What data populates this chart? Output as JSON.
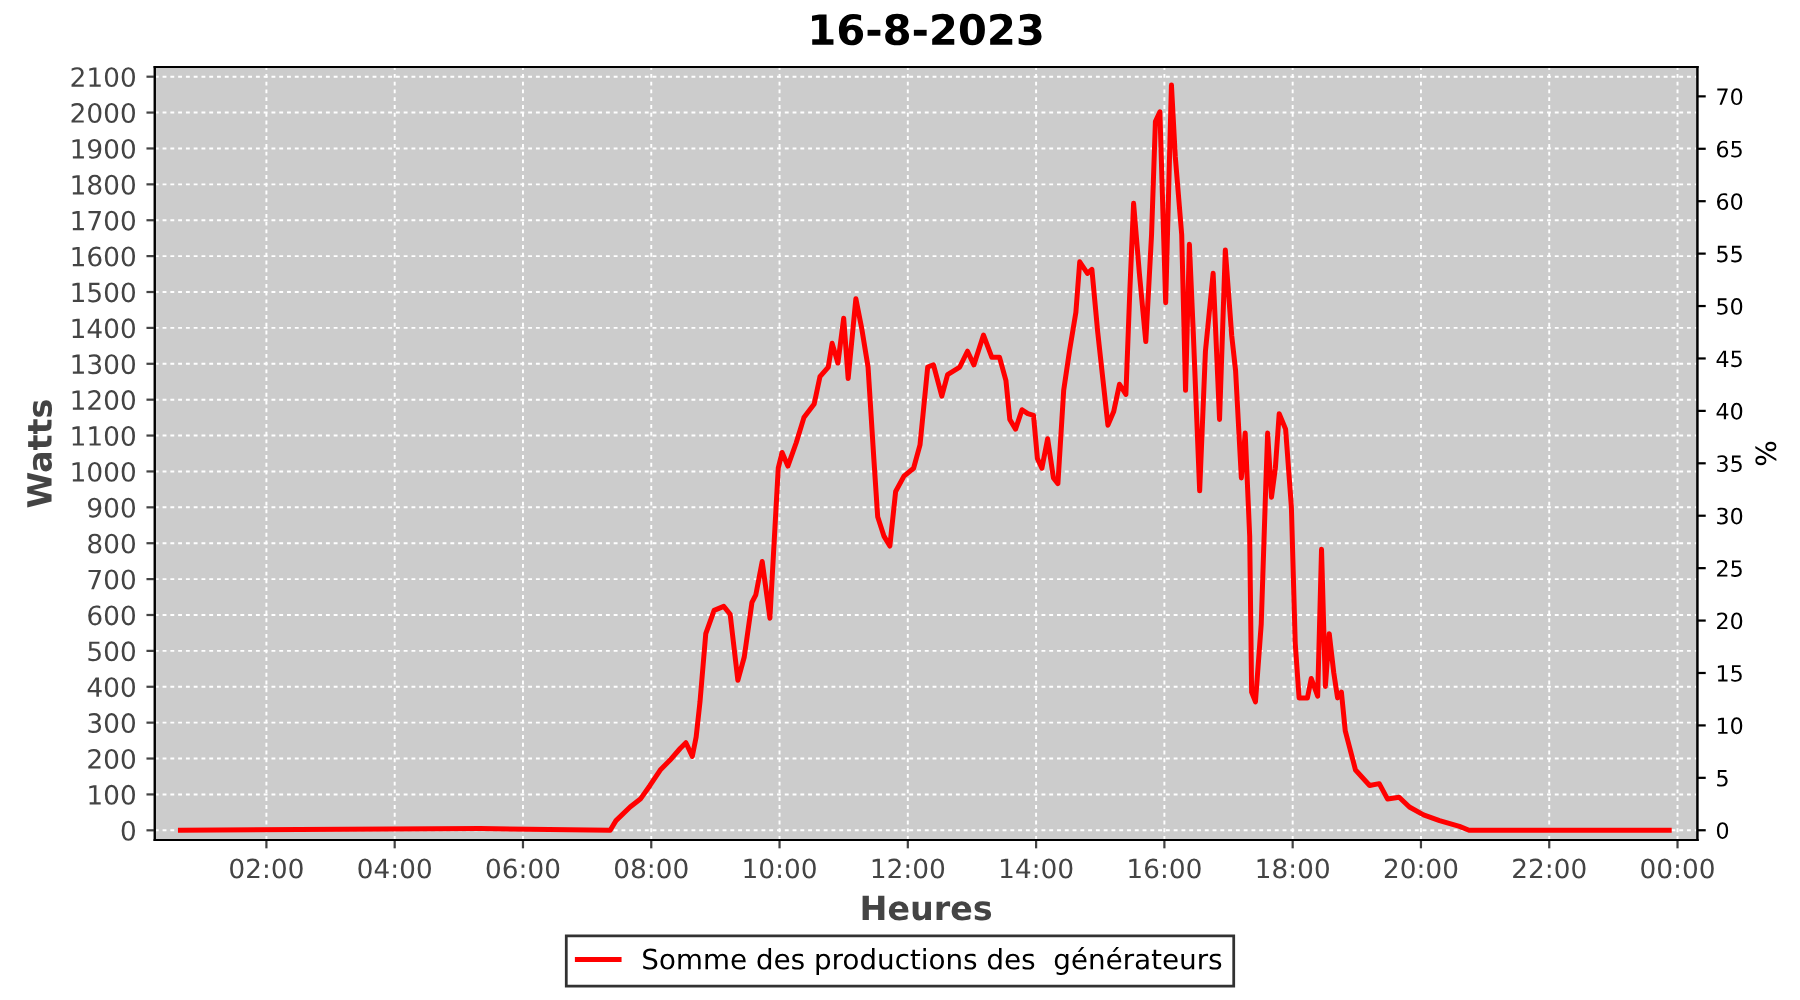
{
  "chart_data": {
    "type": "line",
    "title": "16-8-2023",
    "xlabel": "Heures",
    "ylabel": "Watts",
    "y2label": "%",
    "xlim": [
      0.26,
      24.31
    ],
    "xticks": [
      {
        "value": 2,
        "label": "02:00"
      },
      {
        "value": 4,
        "label": "04:00"
      },
      {
        "value": 6,
        "label": "06:00"
      },
      {
        "value": 8,
        "label": "08:00"
      },
      {
        "value": 10,
        "label": "10:00"
      },
      {
        "value": 12,
        "label": "12:00"
      },
      {
        "value": 14,
        "label": "14:00"
      },
      {
        "value": 16,
        "label": "16:00"
      },
      {
        "value": 18,
        "label": "18:00"
      },
      {
        "value": 20,
        "label": "20:00"
      },
      {
        "value": 22,
        "label": "22:00"
      },
      {
        "value": 24,
        "label": "00:00"
      }
    ],
    "ylim": [
      -27,
      2127
    ],
    "yticks": [
      0,
      100,
      200,
      300,
      400,
      500,
      600,
      700,
      800,
      900,
      1000,
      1100,
      1200,
      1300,
      1400,
      1500,
      1600,
      1700,
      1800,
      1900,
      2000,
      2100
    ],
    "y2lim": [
      -0.93,
      72.8
    ],
    "y2ticks": [
      0,
      5,
      10,
      15,
      20,
      25,
      30,
      35,
      40,
      45,
      50,
      55,
      60,
      65,
      70
    ],
    "grid": true,
    "legend": "bottom",
    "marker": "none",
    "line_style": "solid",
    "series": [
      {
        "name": "Somme des productions des  générateurs",
        "color": "#ff0000",
        "x": [
          0.66,
          5.33,
          7.36,
          7.45,
          7.67,
          7.83,
          7.98,
          8.14,
          8.29,
          8.45,
          8.54,
          8.64,
          8.7,
          8.76,
          8.85,
          8.98,
          9.13,
          9.23,
          9.35,
          9.45,
          9.57,
          9.63,
          9.73,
          9.85,
          9.98,
          10.04,
          10.13,
          10.26,
          10.38,
          10.54,
          10.63,
          10.76,
          10.82,
          10.91,
          11.0,
          11.07,
          11.19,
          11.28,
          11.38,
          11.47,
          11.53,
          11.63,
          11.72,
          11.81,
          11.94,
          12.09,
          12.19,
          12.31,
          12.4,
          12.53,
          12.62,
          12.81,
          12.93,
          13.03,
          13.18,
          13.31,
          13.43,
          13.53,
          13.59,
          13.68,
          13.78,
          13.87,
          13.96,
          14.02,
          14.09,
          14.18,
          14.27,
          14.34,
          14.43,
          14.52,
          14.62,
          14.68,
          14.8,
          14.87,
          14.96,
          15.02,
          15.12,
          15.21,
          15.3,
          15.4,
          15.46,
          15.52,
          15.61,
          15.71,
          15.8,
          15.86,
          15.93,
          16.02,
          16.11,
          16.17,
          16.27,
          16.33,
          16.39,
          16.45,
          16.55,
          16.64,
          16.76,
          16.86,
          16.95,
          17.05,
          17.11,
          17.2,
          17.26,
          17.33,
          17.36,
          17.42,
          17.51,
          17.58,
          17.61,
          17.67,
          17.73,
          17.79,
          17.89,
          17.98,
          18.04,
          18.1,
          18.23,
          18.29,
          18.39,
          18.45,
          18.51,
          18.57,
          18.64,
          18.7,
          18.76,
          18.82,
          18.98,
          19.2,
          19.35,
          19.48,
          19.66,
          19.82,
          20.04,
          20.29,
          20.6,
          20.75,
          23.87
        ],
        "values": [
          0,
          5,
          0,
          27,
          65,
          87,
          125,
          168,
          195,
          228,
          244,
          206,
          260,
          358,
          548,
          613,
          624,
          602,
          418,
          483,
          635,
          656,
          749,
          591,
          1009,
          1053,
          1015,
          1080,
          1150,
          1188,
          1264,
          1291,
          1357,
          1302,
          1427,
          1259,
          1481,
          1400,
          1291,
          1036,
          874,
          819,
          792,
          944,
          987,
          1009,
          1074,
          1291,
          1297,
          1210,
          1270,
          1291,
          1335,
          1297,
          1380,
          1318,
          1318,
          1253,
          1145,
          1118,
          1172,
          1161,
          1156,
          1036,
          1009,
          1091,
          982,
          966,
          1226,
          1335,
          1443,
          1584,
          1552,
          1563,
          1389,
          1291,
          1129,
          1167,
          1243,
          1215,
          1498,
          1747,
          1552,
          1362,
          1660,
          1975,
          2002,
          1470,
          2077,
          1877,
          1660,
          1226,
          1633,
          1389,
          946,
          1335,
          1552,
          1145,
          1617,
          1378,
          1281,
          982,
          1107,
          819,
          385,
          358,
          575,
          955,
          1107,
          928,
          1009,
          1161,
          1118,
          901,
          521,
          369,
          369,
          423,
          374,
          783,
          401,
          548,
          440,
          369,
          385,
          277,
          168,
          125,
          130,
          87,
          92,
          65,
          43,
          27,
          11,
          0,
          0
        ]
      }
    ]
  }
}
